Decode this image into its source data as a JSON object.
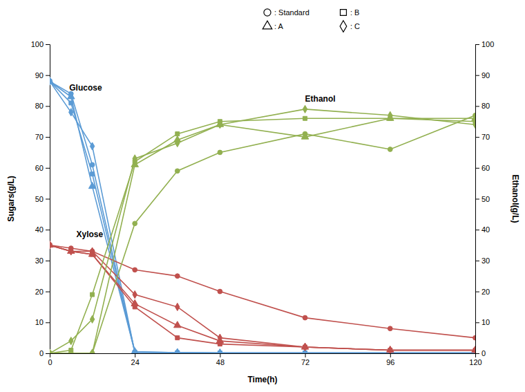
{
  "chart_data": {
    "type": "line",
    "xlabel": "Time(h)",
    "ylabel": "Sugars(g/L)",
    "y2label": "Ethanol(g/L)",
    "x": [
      0,
      6,
      12,
      24,
      36,
      48,
      72,
      96,
      120
    ],
    "xlim": [
      0,
      120
    ],
    "xticks": [
      0,
      24,
      48,
      72,
      96,
      120
    ],
    "ylim": [
      0,
      100
    ],
    "yticks": [
      0,
      10,
      20,
      30,
      40,
      50,
      60,
      70,
      80,
      90,
      100
    ],
    "y2lim": [
      0,
      100
    ],
    "y2ticks": [
      0,
      10,
      20,
      30,
      40,
      50,
      60,
      70,
      80,
      90,
      100
    ],
    "grid": false,
    "legend": "top",
    "series": [
      {
        "name": ": Standard",
        "color": "#5B9BD5",
        "marker": "circle",
        "line_style": "solid",
        "values": [
          88,
          84,
          61,
          0.5,
          0.2,
          0.1,
          0.1,
          0.1,
          0.1
        ]
      },
      {
        "name": ": B",
        "color": "#5B9BD5",
        "marker": "square",
        "line_style": "solid",
        "values": [
          88,
          81,
          58,
          0.3,
          0.2,
          0.1,
          0.1,
          0.1,
          0.1
        ]
      },
      {
        "name": ": A",
        "color": "#5B9BD5",
        "marker": "triangle",
        "line_style": "solid",
        "values": [
          88,
          83,
          54,
          0.5,
          0.2,
          0.1,
          0.1,
          0.1,
          0.1
        ]
      },
      {
        "name": ": C",
        "color": "#5B9BD5",
        "marker": "diamond",
        "line_style": "solid",
        "values": [
          88,
          78,
          67,
          0.3,
          0.2,
          0.1,
          0.1,
          0.1,
          0.1
        ]
      },
      {
        "name": ": Standard",
        "color": "#C0504D",
        "marker": "circle",
        "line_style": "solid",
        "values": [
          35,
          34,
          33,
          27,
          25,
          20,
          11.5,
          8,
          5
        ]
      },
      {
        "name": ": B",
        "color": "#C0504D",
        "marker": "square",
        "line_style": "solid",
        "values": [
          35,
          33,
          32,
          15,
          5,
          3,
          2,
          1,
          1
        ]
      },
      {
        "name": ": A",
        "color": "#C0504D",
        "marker": "triangle",
        "line_style": "solid",
        "values": [
          35,
          33,
          32,
          16,
          9,
          4,
          2,
          1,
          1
        ]
      },
      {
        "name": ": C",
        "color": "#C0504D",
        "marker": "diamond",
        "line_style": "solid",
        "values": [
          35,
          33,
          33,
          19,
          15,
          5,
          2,
          1,
          1
        ]
      },
      {
        "name": ": Standard",
        "color": "#92B050",
        "marker": "circle",
        "line_style": "solid",
        "axis": "y2",
        "values": [
          0,
          0,
          0,
          42,
          59,
          65,
          71,
          66,
          77
        ]
      },
      {
        "name": ": B",
        "color": "#92B050",
        "marker": "square",
        "line_style": "solid",
        "axis": "y2",
        "values": [
          0,
          1,
          19,
          62,
          71,
          75,
          76,
          76,
          75
        ]
      },
      {
        "name": ": A",
        "color": "#92B050",
        "marker": "triangle",
        "line_style": "solid",
        "axis": "y2",
        "values": [
          0,
          0,
          0,
          61,
          69,
          74,
          70,
          76,
          76
        ]
      },
      {
        "name": ": C",
        "color": "#92B050",
        "marker": "diamond",
        "line_style": "solid",
        "axis": "y2",
        "values": [
          0,
          4,
          11,
          63,
          68,
          74,
          79,
          77,
          74
        ]
      }
    ],
    "annotations": [
      {
        "text": "Glucose",
        "x": 5.5,
        "y": 85
      },
      {
        "text": "Xylose",
        "x": 7.5,
        "y": 37.5
      },
      {
        "text": "Ethanol",
        "x": 72,
        "y": 81.5,
        "axis": "y2"
      }
    ]
  }
}
